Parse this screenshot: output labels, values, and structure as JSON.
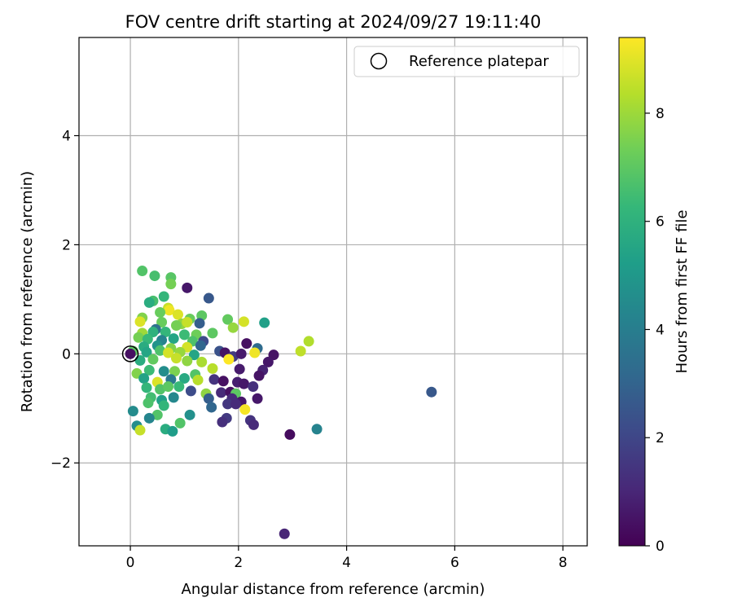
{
  "chart_data": {
    "type": "scatter",
    "title": "FOV centre drift starting at 2024/09/27 19:11:40",
    "xlabel": "Angular distance from reference (arcmin)",
    "ylabel": "Rotation from reference (arcmin)",
    "xlim": [
      -0.95,
      8.45
    ],
    "ylim": [
      -3.52,
      5.8
    ],
    "xticks": [
      0,
      2,
      4,
      6,
      8
    ],
    "xtick_labels": [
      "0",
      "2",
      "4",
      "6",
      "8"
    ],
    "yticks": [
      -2,
      0,
      2,
      4
    ],
    "ytick_labels": [
      "−2",
      "0",
      "2",
      "4"
    ],
    "grid": true,
    "legend": {
      "placement": "top-right",
      "label": "Reference platepar"
    },
    "reference_point": {
      "x": 0,
      "y": 0,
      "c": 0.4
    },
    "colorbar": {
      "label": "Hours from first FF file",
      "range": [
        0,
        9.4
      ],
      "ticks": [
        0,
        2,
        4,
        6,
        8
      ],
      "tick_labels": [
        "0",
        "2",
        "4",
        "6",
        "8"
      ],
      "colormap": "viridis",
      "stops": [
        "#440154",
        "#482878",
        "#3e4989",
        "#31688e",
        "#26828e",
        "#1f9e89",
        "#35b779",
        "#6ece58",
        "#b5de2b",
        "#fde725"
      ]
    },
    "points": [
      {
        "x": 0.22,
        "y": 1.52,
        "c": 6.8
      },
      {
        "x": 0.45,
        "y": 1.43,
        "c": 6.6
      },
      {
        "x": 0.75,
        "y": 1.4,
        "c": 6.9
      },
      {
        "x": 0.75,
        "y": 1.28,
        "c": 7.4
      },
      {
        "x": 1.05,
        "y": 1.21,
        "c": 0.6
      },
      {
        "x": 1.45,
        "y": 1.02,
        "c": 2.6
      },
      {
        "x": 0.62,
        "y": 1.05,
        "c": 6.2
      },
      {
        "x": 0.42,
        "y": 0.97,
        "c": 6.6
      },
      {
        "x": 0.35,
        "y": 0.94,
        "c": 5.8
      },
      {
        "x": 0.7,
        "y": 0.84,
        "c": 8.6
      },
      {
        "x": 0.72,
        "y": 0.8,
        "c": 9.2
      },
      {
        "x": 0.55,
        "y": 0.76,
        "c": 7.2
      },
      {
        "x": 0.88,
        "y": 0.72,
        "c": 8.9
      },
      {
        "x": 1.32,
        "y": 0.7,
        "c": 7.0
      },
      {
        "x": 1.8,
        "y": 0.63,
        "c": 7.1
      },
      {
        "x": 0.22,
        "y": 0.66,
        "c": 7.6
      },
      {
        "x": 1.1,
        "y": 0.64,
        "c": 7.2
      },
      {
        "x": 2.48,
        "y": 0.57,
        "c": 5.3
      },
      {
        "x": 2.1,
        "y": 0.59,
        "c": 8.8
      },
      {
        "x": 0.18,
        "y": 0.59,
        "c": 8.9
      },
      {
        "x": 0.58,
        "y": 0.58,
        "c": 7.2
      },
      {
        "x": 0.95,
        "y": 0.55,
        "c": 7.8
      },
      {
        "x": 1.05,
        "y": 0.58,
        "c": 8.6
      },
      {
        "x": 1.28,
        "y": 0.56,
        "c": 2.8
      },
      {
        "x": 1.9,
        "y": 0.48,
        "c": 7.9
      },
      {
        "x": 0.47,
        "y": 0.45,
        "c": 3.5
      },
      {
        "x": 0.85,
        "y": 0.52,
        "c": 7.4
      },
      {
        "x": 1.52,
        "y": 0.38,
        "c": 7.0
      },
      {
        "x": 0.65,
        "y": 0.4,
        "c": 6.2
      },
      {
        "x": 0.22,
        "y": 0.38,
        "c": 8.0
      },
      {
        "x": 0.42,
        "y": 0.4,
        "c": 6.0
      },
      {
        "x": 1.0,
        "y": 0.35,
        "c": 6.4
      },
      {
        "x": 1.22,
        "y": 0.35,
        "c": 7.3
      },
      {
        "x": 0.15,
        "y": 0.3,
        "c": 7.4
      },
      {
        "x": 0.32,
        "y": 0.27,
        "c": 6.3
      },
      {
        "x": 0.58,
        "y": 0.25,
        "c": 4.2
      },
      {
        "x": 0.8,
        "y": 0.28,
        "c": 5.5
      },
      {
        "x": 1.15,
        "y": 0.23,
        "c": 6.7
      },
      {
        "x": 1.35,
        "y": 0.23,
        "c": 2.2
      },
      {
        "x": 3.3,
        "y": 0.23,
        "c": 8.3
      },
      {
        "x": 2.15,
        "y": 0.19,
        "c": 0.4
      },
      {
        "x": 0.25,
        "y": 0.13,
        "c": 5.8
      },
      {
        "x": 0.5,
        "y": 0.15,
        "c": 4.8
      },
      {
        "x": 0.75,
        "y": 0.1,
        "c": 7.6
      },
      {
        "x": 1.05,
        "y": 0.12,
        "c": 8.8
      },
      {
        "x": 1.3,
        "y": 0.15,
        "c": 3.1
      },
      {
        "x": 2.35,
        "y": 0.1,
        "c": 3.3
      },
      {
        "x": 0.05,
        "y": 0.05,
        "c": 7.0
      },
      {
        "x": 0.3,
        "y": 0.03,
        "c": 5.5
      },
      {
        "x": 0.55,
        "y": 0.06,
        "c": 6.7
      },
      {
        "x": 0.7,
        "y": 0.02,
        "c": 8.8
      },
      {
        "x": 0.92,
        "y": 0.03,
        "c": 7.9
      },
      {
        "x": 1.18,
        "y": -0.02,
        "c": 5.5
      },
      {
        "x": 1.65,
        "y": 0.05,
        "c": 2.4
      },
      {
        "x": 1.75,
        "y": 0.02,
        "c": 0.5
      },
      {
        "x": 1.9,
        "y": -0.05,
        "c": 1.6
      },
      {
        "x": 2.05,
        "y": 0.0,
        "c": 0.7
      },
      {
        "x": 2.3,
        "y": 0.02,
        "c": 9.2
      },
      {
        "x": 2.65,
        "y": -0.02,
        "c": 0.5
      },
      {
        "x": 3.15,
        "y": 0.05,
        "c": 8.5
      },
      {
        "x": 1.82,
        "y": -0.1,
        "c": 9.4
      },
      {
        "x": 0.18,
        "y": -0.12,
        "c": 5.8
      },
      {
        "x": 0.42,
        "y": -0.1,
        "c": 7.1
      },
      {
        "x": 0.85,
        "y": -0.08,
        "c": 8.6
      },
      {
        "x": 1.05,
        "y": -0.13,
        "c": 7.8
      },
      {
        "x": 1.32,
        "y": -0.15,
        "c": 8.2
      },
      {
        "x": 2.55,
        "y": -0.15,
        "c": 0.6
      },
      {
        "x": 0.12,
        "y": -0.36,
        "c": 7.6
      },
      {
        "x": 0.35,
        "y": -0.3,
        "c": 6.4
      },
      {
        "x": 0.62,
        "y": -0.32,
        "c": 4.6
      },
      {
        "x": 0.82,
        "y": -0.32,
        "c": 7.5
      },
      {
        "x": 1.2,
        "y": -0.38,
        "c": 6.8
      },
      {
        "x": 1.52,
        "y": -0.27,
        "c": 8.4
      },
      {
        "x": 2.02,
        "y": -0.28,
        "c": 0.7
      },
      {
        "x": 2.45,
        "y": -0.3,
        "c": 0.9
      },
      {
        "x": 2.38,
        "y": -0.4,
        "c": 0.5
      },
      {
        "x": 0.25,
        "y": -0.45,
        "c": 5.4
      },
      {
        "x": 0.5,
        "y": -0.52,
        "c": 8.9
      },
      {
        "x": 0.75,
        "y": -0.47,
        "c": 3.8
      },
      {
        "x": 1.0,
        "y": -0.45,
        "c": 5.7
      },
      {
        "x": 1.25,
        "y": -0.48,
        "c": 8.4
      },
      {
        "x": 1.55,
        "y": -0.47,
        "c": 1.4
      },
      {
        "x": 1.72,
        "y": -0.5,
        "c": 0.4
      },
      {
        "x": 1.98,
        "y": -0.52,
        "c": 0.8
      },
      {
        "x": 2.1,
        "y": -0.55,
        "c": 0.6
      },
      {
        "x": 2.27,
        "y": -0.6,
        "c": 1.3
      },
      {
        "x": 0.3,
        "y": -0.62,
        "c": 6.2
      },
      {
        "x": 0.55,
        "y": -0.65,
        "c": 6.8
      },
      {
        "x": 0.7,
        "y": -0.6,
        "c": 7.0
      },
      {
        "x": 0.9,
        "y": -0.6,
        "c": 6.3
      },
      {
        "x": 1.12,
        "y": -0.68,
        "c": 2.2
      },
      {
        "x": 1.4,
        "y": -0.73,
        "c": 7.8
      },
      {
        "x": 1.68,
        "y": -0.71,
        "c": 1.1
      },
      {
        "x": 1.85,
        "y": -0.7,
        "c": 0.4
      },
      {
        "x": 1.95,
        "y": -0.73,
        "c": 7.0
      },
      {
        "x": 2.35,
        "y": -0.82,
        "c": 0.6
      },
      {
        "x": 5.57,
        "y": -0.7,
        "c": 2.6
      },
      {
        "x": 0.38,
        "y": -0.8,
        "c": 6.5
      },
      {
        "x": 0.58,
        "y": -0.85,
        "c": 5.3
      },
      {
        "x": 0.8,
        "y": -0.8,
        "c": 4.4
      },
      {
        "x": 1.45,
        "y": -0.82,
        "c": 2.8
      },
      {
        "x": 1.88,
        "y": -0.82,
        "c": 1.1
      },
      {
        "x": 2.05,
        "y": -0.88,
        "c": 0.6
      },
      {
        "x": 0.33,
        "y": -0.9,
        "c": 6.7
      },
      {
        "x": 0.62,
        "y": -0.95,
        "c": 6.2
      },
      {
        "x": 1.5,
        "y": -0.98,
        "c": 3.1
      },
      {
        "x": 1.8,
        "y": -0.92,
        "c": 1.5
      },
      {
        "x": 1.95,
        "y": -0.92,
        "c": 1.1
      },
      {
        "x": 0.05,
        "y": -1.05,
        "c": 4.5
      },
      {
        "x": 2.12,
        "y": -1.02,
        "c": 9.3
      },
      {
        "x": 0.5,
        "y": -1.12,
        "c": 6.8
      },
      {
        "x": 0.35,
        "y": -1.18,
        "c": 4.3
      },
      {
        "x": 1.1,
        "y": -1.12,
        "c": 4.7
      },
      {
        "x": 1.78,
        "y": -1.18,
        "c": 1.6
      },
      {
        "x": 2.22,
        "y": -1.22,
        "c": 1.4
      },
      {
        "x": 1.7,
        "y": -1.25,
        "c": 1.3
      },
      {
        "x": 0.92,
        "y": -1.27,
        "c": 6.8
      },
      {
        "x": 2.28,
        "y": -1.3,
        "c": 1.1
      },
      {
        "x": 0.12,
        "y": -1.32,
        "c": 4.6
      },
      {
        "x": 0.18,
        "y": -1.4,
        "c": 8.6
      },
      {
        "x": 0.65,
        "y": -1.38,
        "c": 5.8
      },
      {
        "x": 0.78,
        "y": -1.42,
        "c": 5.2
      },
      {
        "x": 3.45,
        "y": -1.38,
        "c": 4.2
      },
      {
        "x": 2.95,
        "y": -1.48,
        "c": 0.3
      },
      {
        "x": 2.85,
        "y": -3.3,
        "c": 1.0
      }
    ]
  }
}
